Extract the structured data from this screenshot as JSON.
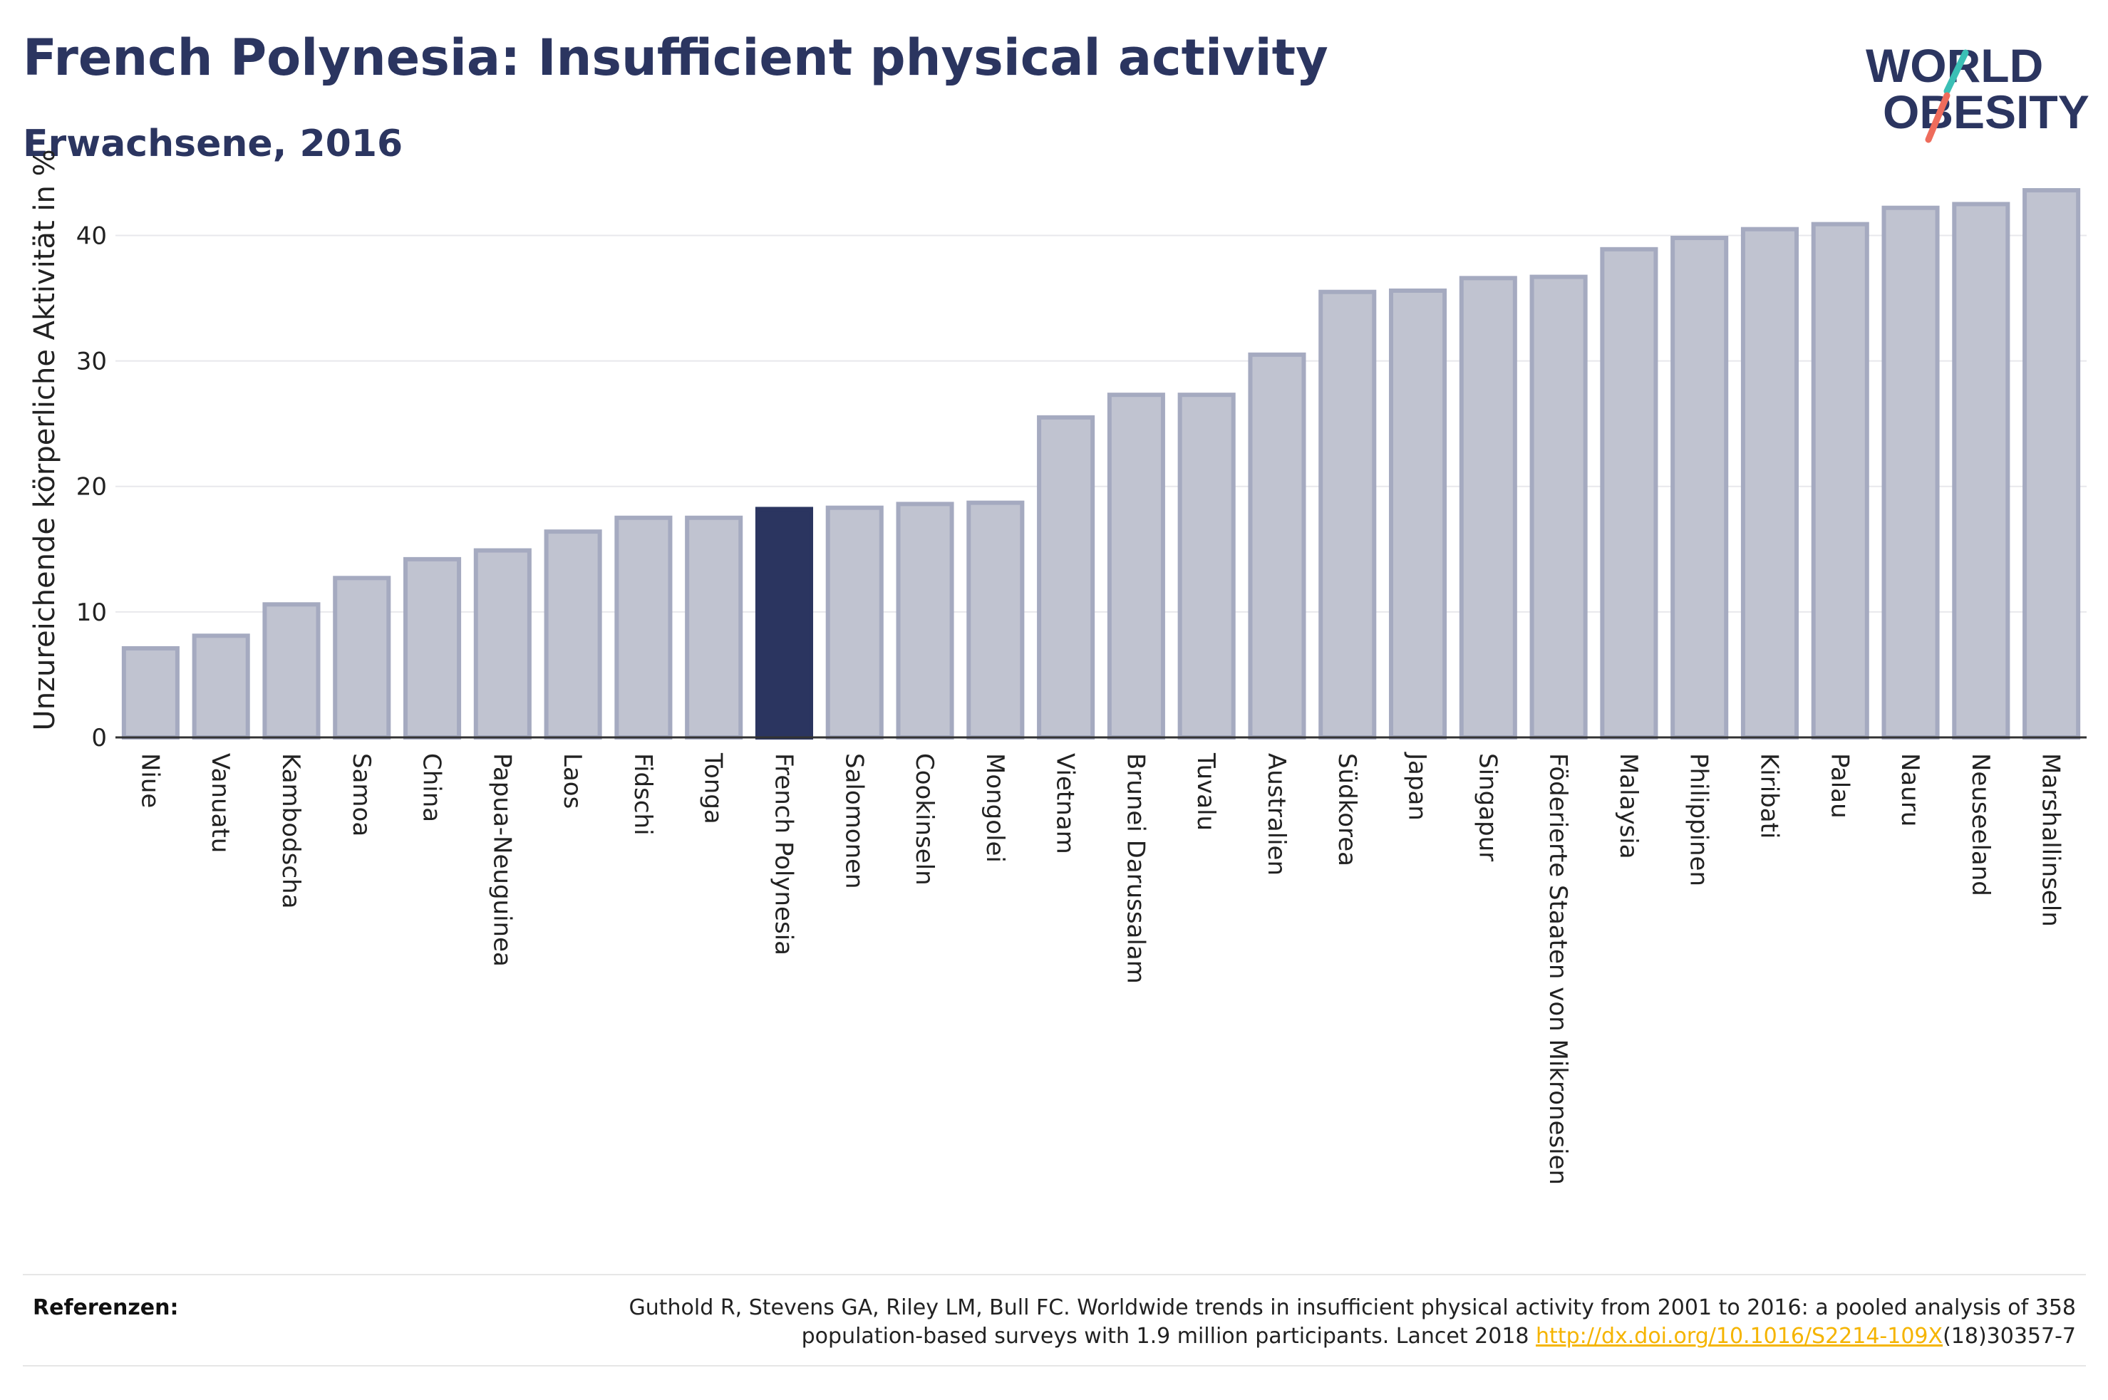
{
  "header": {
    "title": "French Polynesia: Insufficient physical activity",
    "subtitle": "Erwachsene, 2016"
  },
  "logo": {
    "line1": "WORLD",
    "line2": "OBESITY"
  },
  "colors": {
    "bar": "#c0c3d0",
    "bar_stroke": "#a5aac0",
    "highlight": "#2b3560",
    "title": "#2b3560",
    "link": "#f5b400"
  },
  "chart_data": {
    "type": "bar",
    "title": "French Polynesia: Insufficient physical activity",
    "subtitle": "Erwachsene, 2016",
    "ylabel": "Unzureichende körperliche Aktivität in %",
    "xlabel": "",
    "ylim": [
      0,
      44
    ],
    "yticks": [
      0,
      10,
      20,
      30,
      40
    ],
    "grid": true,
    "highlight": "French Polynesia",
    "categories": [
      "Niue",
      "Vanuatu",
      "Kambodscha",
      "Samoa",
      "China",
      "Papua-Neuguinea",
      "Laos",
      "Fidschi",
      "Tonga",
      "French Polynesia",
      "Salomonen",
      "Cookinseln",
      "Mongolei",
      "Vietnam",
      "Brunei Darussalam",
      "Tuvalu",
      "Australien",
      "Südkorea",
      "Japan",
      "Singapur",
      "Föderierte Staaten von Mikronesien",
      "Malaysia",
      "Philippinen",
      "Kiribati",
      "Palau",
      "Nauru",
      "Neuseeland",
      "Marshallinseln"
    ],
    "values": [
      7.1,
      8.1,
      10.6,
      12.7,
      14.2,
      14.9,
      16.4,
      17.5,
      17.5,
      18.2,
      18.3,
      18.6,
      18.7,
      25.5,
      27.3,
      27.3,
      30.5,
      35.5,
      35.6,
      36.6,
      36.7,
      38.9,
      39.8,
      40.5,
      40.9,
      42.2,
      42.5,
      43.6
    ]
  },
  "references": {
    "label": "Referenzen:",
    "text_line1": "Guthold R, Stevens GA, Riley LM, Bull FC. Worldwide trends in insufficient physical activity from 2001 to 2016: a pooled analysis of 358",
    "text_line2_pre": "population-based surveys with 1.9 million participants. Lancet 2018 ",
    "link": "http://dx.doi.org/10.1016/S2214-109X",
    "text_line2_post": "(18)30357-7"
  }
}
